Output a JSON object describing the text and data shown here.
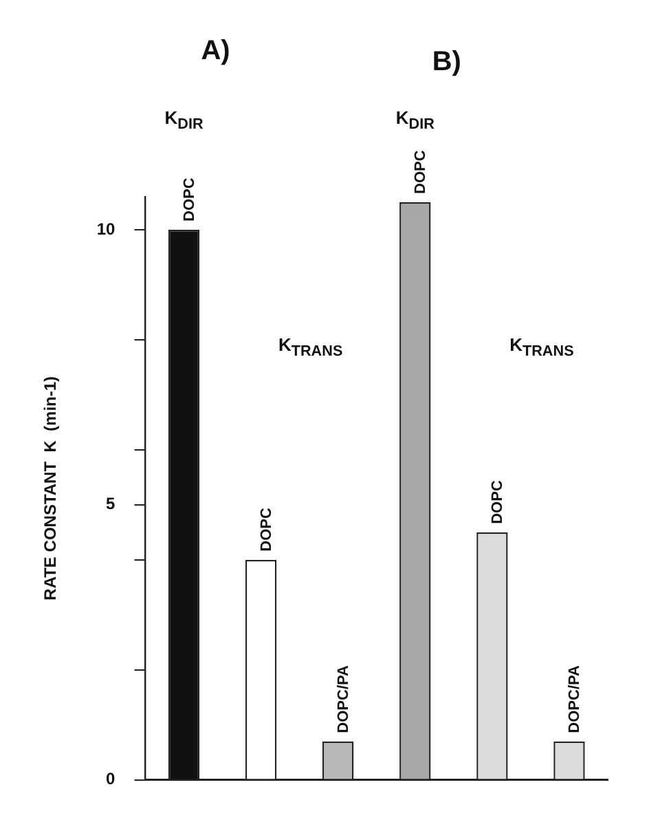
{
  "chart_data": {
    "type": "bar",
    "ylabel": "RATE CONSTANT  K  (min-1)",
    "categories": [
      "DOPC",
      "DOPC",
      "DOPC/PA",
      "DOPC",
      "DOPC",
      "DOPC/PA"
    ],
    "values": [
      10,
      4,
      0.7,
      10.5,
      4.5,
      0.7
    ],
    "colors": [
      "#111111",
      "#ffffff",
      "#b8b8b8",
      "#a8a8a8",
      "#dcdcdc",
      "#dcdcdc"
    ],
    "ylim": [
      0,
      10.6
    ],
    "yticks": [
      0,
      {
        "value": 2,
        "label": null
      },
      {
        "value": 4,
        "label": null
      },
      5,
      {
        "value": 6,
        "label": null
      },
      {
        "value": 8,
        "label": null
      },
      10
    ],
    "tick_labels": "y",
    "grid": false,
    "legend": false,
    "annotations": [
      "A)",
      "B)",
      "K$_{DIR}$",
      "K$_{TRANS}$",
      "K$_{DIR}$",
      "K$_{TRANS}$"
    ]
  }
}
